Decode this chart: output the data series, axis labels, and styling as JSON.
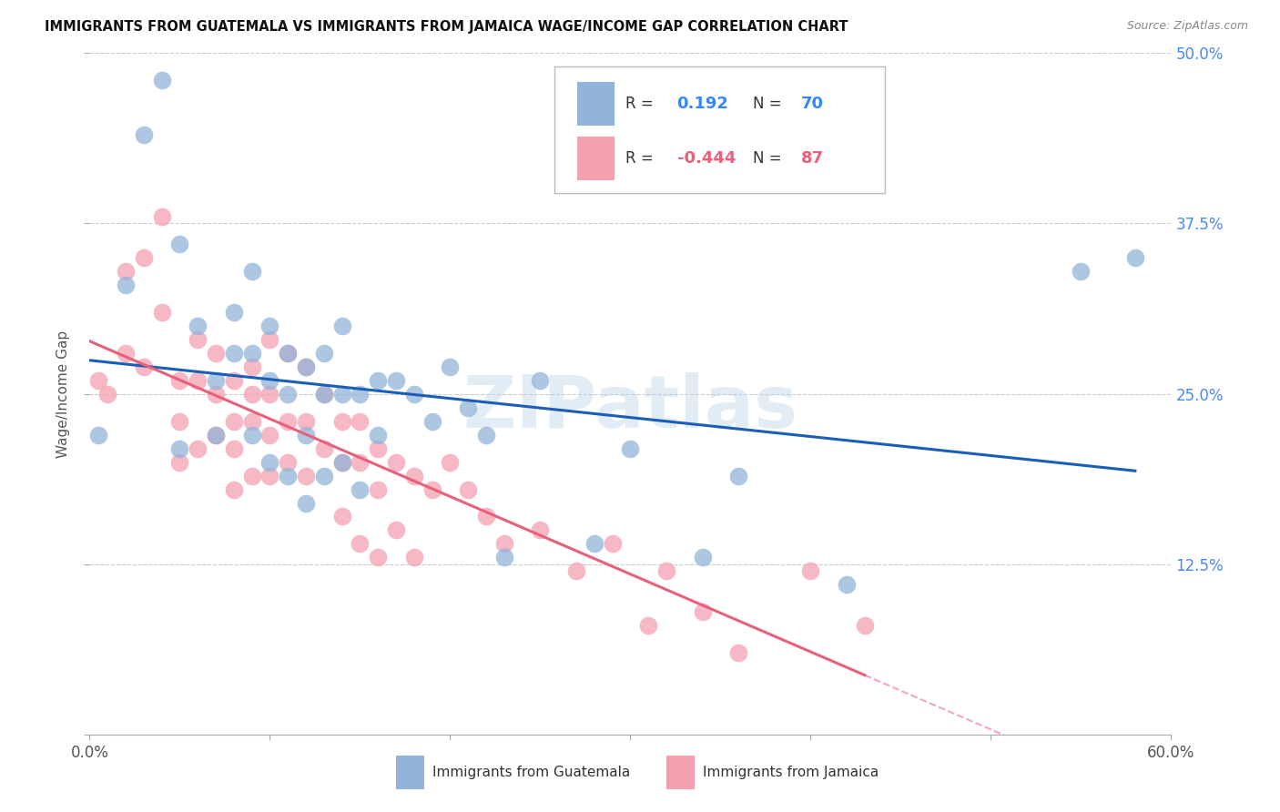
{
  "title": "IMMIGRANTS FROM GUATEMALA VS IMMIGRANTS FROM JAMAICA WAGE/INCOME GAP CORRELATION CHART",
  "source": "Source: ZipAtlas.com",
  "ylabel": "Wage/Income Gap",
  "y_ticks": [
    0.0,
    0.125,
    0.25,
    0.375,
    0.5
  ],
  "y_tick_labels": [
    "",
    "12.5%",
    "25.0%",
    "37.5%",
    "50.0%"
  ],
  "x_ticks": [
    0.0,
    0.1,
    0.2,
    0.3,
    0.4,
    0.5,
    0.6
  ],
  "x_tick_labels": [
    "0.0%",
    "",
    "",
    "",
    "",
    "",
    "60.0%"
  ],
  "blue_color": "#92B4D9",
  "pink_color": "#F4A0B0",
  "line_blue": "#1A5EB8",
  "line_pink": "#E8607A",
  "watermark": "ZIPatlas",
  "Guatemala_x": [
    0.005,
    0.02,
    0.03,
    0.04,
    0.05,
    0.05,
    0.06,
    0.07,
    0.07,
    0.08,
    0.08,
    0.09,
    0.09,
    0.09,
    0.1,
    0.1,
    0.1,
    0.11,
    0.11,
    0.11,
    0.12,
    0.12,
    0.12,
    0.13,
    0.13,
    0.13,
    0.14,
    0.14,
    0.14,
    0.15,
    0.15,
    0.16,
    0.16,
    0.17,
    0.18,
    0.19,
    0.2,
    0.21,
    0.22,
    0.23,
    0.25,
    0.28,
    0.3,
    0.34,
    0.36,
    0.42,
    0.55,
    0.58
  ],
  "Guatemala_y": [
    0.22,
    0.33,
    0.44,
    0.48,
    0.21,
    0.36,
    0.3,
    0.26,
    0.22,
    0.28,
    0.31,
    0.34,
    0.28,
    0.22,
    0.3,
    0.26,
    0.2,
    0.28,
    0.25,
    0.19,
    0.27,
    0.22,
    0.17,
    0.28,
    0.25,
    0.19,
    0.3,
    0.25,
    0.2,
    0.25,
    0.18,
    0.26,
    0.22,
    0.26,
    0.25,
    0.23,
    0.27,
    0.24,
    0.22,
    0.13,
    0.26,
    0.14,
    0.21,
    0.13,
    0.19,
    0.11,
    0.34,
    0.35
  ],
  "Jamaica_x": [
    0.005,
    0.01,
    0.02,
    0.02,
    0.03,
    0.03,
    0.04,
    0.04,
    0.05,
    0.05,
    0.05,
    0.06,
    0.06,
    0.06,
    0.07,
    0.07,
    0.07,
    0.08,
    0.08,
    0.08,
    0.08,
    0.09,
    0.09,
    0.09,
    0.09,
    0.1,
    0.1,
    0.1,
    0.1,
    0.11,
    0.11,
    0.11,
    0.12,
    0.12,
    0.12,
    0.13,
    0.13,
    0.14,
    0.14,
    0.14,
    0.15,
    0.15,
    0.15,
    0.16,
    0.16,
    0.16,
    0.17,
    0.17,
    0.18,
    0.18,
    0.19,
    0.2,
    0.21,
    0.22,
    0.23,
    0.25,
    0.27,
    0.29,
    0.31,
    0.32,
    0.34,
    0.36,
    0.4,
    0.43
  ],
  "Jamaica_y": [
    0.26,
    0.25,
    0.34,
    0.28,
    0.35,
    0.27,
    0.38,
    0.31,
    0.26,
    0.23,
    0.2,
    0.29,
    0.26,
    0.21,
    0.28,
    0.25,
    0.22,
    0.26,
    0.23,
    0.21,
    0.18,
    0.27,
    0.25,
    0.23,
    0.19,
    0.29,
    0.25,
    0.22,
    0.19,
    0.28,
    0.23,
    0.2,
    0.27,
    0.23,
    0.19,
    0.25,
    0.21,
    0.23,
    0.2,
    0.16,
    0.23,
    0.2,
    0.14,
    0.21,
    0.18,
    0.13,
    0.2,
    0.15,
    0.19,
    0.13,
    0.18,
    0.2,
    0.18,
    0.16,
    0.14,
    0.15,
    0.12,
    0.14,
    0.08,
    0.12,
    0.09,
    0.06,
    0.12,
    0.08
  ],
  "r_blue": "0.192",
  "n_blue": "70",
  "r_pink": "-0.444",
  "n_pink": "87"
}
